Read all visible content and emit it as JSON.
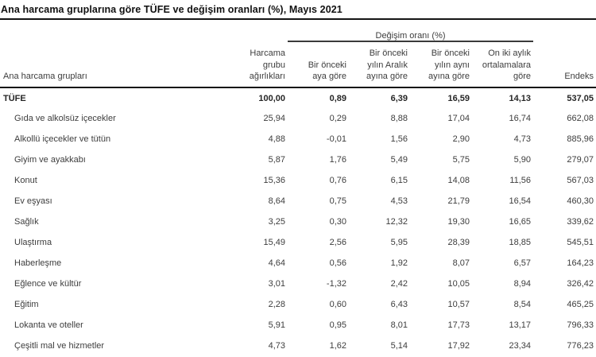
{
  "title": "Ana harcama gruplarına göre TÜFE ve değişim oranları (%), Mayıs 2021",
  "table": {
    "group_header": "Değişim oranı (%)",
    "columns": [
      "Ana harcama grupları",
      "Harcama grubu ağırlıkları",
      "Bir önceki aya göre",
      "Bir önceki yılın Aralık ayına göre",
      "Bir önceki yılın aynı ayına göre",
      "On iki aylık ortalamalara göre",
      "Endeks"
    ],
    "columns_multiline": [
      [
        "Ana harcama grupları"
      ],
      [
        "Harcama",
        "grubu",
        "ağırlıkları"
      ],
      [
        "Bir önceki",
        "aya göre"
      ],
      [
        "Bir önceki",
        "yılın Aralık",
        "ayına göre"
      ],
      [
        "Bir önceki",
        "yılın aynı",
        "ayına göre"
      ],
      [
        "On iki aylık",
        "ortalamalara",
        "göre"
      ],
      [
        "Endeks"
      ]
    ],
    "rows": [
      {
        "label": "TÜFE",
        "bold": true,
        "indent": false,
        "values": [
          "100,00",
          "0,89",
          "6,39",
          "16,59",
          "14,13",
          "537,05"
        ]
      },
      {
        "label": "Gıda ve alkolsüz içecekler",
        "bold": false,
        "indent": true,
        "values": [
          "25,94",
          "0,29",
          "8,88",
          "17,04",
          "16,74",
          "662,08"
        ]
      },
      {
        "label": "Alkollü içecekler ve tütün",
        "bold": false,
        "indent": true,
        "values": [
          "4,88",
          "-0,01",
          "1,56",
          "2,90",
          "4,73",
          "885,96"
        ]
      },
      {
        "label": "Giyim ve ayakkabı",
        "bold": false,
        "indent": true,
        "values": [
          "5,87",
          "1,76",
          "5,49",
          "5,75",
          "5,90",
          "279,07"
        ]
      },
      {
        "label": "Konut",
        "bold": false,
        "indent": true,
        "values": [
          "15,36",
          "0,76",
          "6,15",
          "14,08",
          "11,56",
          "567,03"
        ]
      },
      {
        "label": "Ev eşyası",
        "bold": false,
        "indent": true,
        "values": [
          "8,64",
          "0,75",
          "4,53",
          "21,79",
          "16,54",
          "460,30"
        ]
      },
      {
        "label": "Sağlık",
        "bold": false,
        "indent": true,
        "values": [
          "3,25",
          "0,30",
          "12,32",
          "19,30",
          "16,65",
          "339,62"
        ]
      },
      {
        "label": "Ulaştırma",
        "bold": false,
        "indent": true,
        "values": [
          "15,49",
          "2,56",
          "5,95",
          "28,39",
          "18,85",
          "545,51"
        ]
      },
      {
        "label": "Haberleşme",
        "bold": false,
        "indent": true,
        "values": [
          "4,64",
          "0,56",
          "1,92",
          "8,07",
          "6,57",
          "164,23"
        ]
      },
      {
        "label": "Eğlence ve kültür",
        "bold": false,
        "indent": true,
        "values": [
          "3,01",
          "-1,32",
          "2,42",
          "10,05",
          "8,94",
          "326,42"
        ]
      },
      {
        "label": "Eğitim",
        "bold": false,
        "indent": true,
        "values": [
          "2,28",
          "0,60",
          "6,43",
          "10,57",
          "8,54",
          "465,25"
        ]
      },
      {
        "label": "Lokanta ve oteller",
        "bold": false,
        "indent": true,
        "values": [
          "5,91",
          "0,95",
          "8,01",
          "17,73",
          "13,17",
          "796,33"
        ]
      },
      {
        "label": "Çeşitli mal ve hizmetler",
        "bold": false,
        "indent": true,
        "values": [
          "4,73",
          "1,62",
          "5,14",
          "17,92",
          "23,34",
          "776,23"
        ]
      }
    ]
  },
  "colors": {
    "background": "#ffffff",
    "text": "#3d3d3d",
    "title_text": "#111111",
    "rule": "#151515"
  },
  "chart_data": {
    "type": "table",
    "title": "Ana harcama gruplarına göre TÜFE ve değişim oranları (%), Mayıs 2021",
    "group_header": "Değişim oranı (%)",
    "columns": [
      "Ana harcama grupları",
      "Harcama grubu ağırlıkları",
      "Bir önceki aya göre",
      "Bir önceki yılın Aralık ayına göre",
      "Bir önceki yılın aynı ayına göre",
      "On iki aylık ortalamalara göre",
      "Endeks"
    ],
    "rows": [
      [
        "TÜFE",
        100.0,
        0.89,
        6.39,
        16.59,
        14.13,
        537.05
      ],
      [
        "Gıda ve alkolsüz içecekler",
        25.94,
        0.29,
        8.88,
        17.04,
        16.74,
        662.08
      ],
      [
        "Alkollü içecekler ve tütün",
        4.88,
        -0.01,
        1.56,
        2.9,
        4.73,
        885.96
      ],
      [
        "Giyim ve ayakkabı",
        5.87,
        1.76,
        5.49,
        5.75,
        5.9,
        279.07
      ],
      [
        "Konut",
        15.36,
        0.76,
        6.15,
        14.08,
        11.56,
        567.03
      ],
      [
        "Ev eşyası",
        8.64,
        0.75,
        4.53,
        21.79,
        16.54,
        460.3
      ],
      [
        "Sağlık",
        3.25,
        0.3,
        12.32,
        19.3,
        16.65,
        339.62
      ],
      [
        "Ulaştırma",
        15.49,
        2.56,
        5.95,
        28.39,
        18.85,
        545.51
      ],
      [
        "Haberleşme",
        4.64,
        0.56,
        1.92,
        8.07,
        6.57,
        164.23
      ],
      [
        "Eğlence ve kültür",
        3.01,
        -1.32,
        2.42,
        10.05,
        8.94,
        326.42
      ],
      [
        "Eğitim",
        2.28,
        0.6,
        6.43,
        10.57,
        8.54,
        465.25
      ],
      [
        "Lokanta ve oteller",
        5.91,
        0.95,
        8.01,
        17.73,
        13.17,
        796.33
      ],
      [
        "Çeşitli mal ve hizmetler",
        4.73,
        1.62,
        5.14,
        17.92,
        23.34,
        776.23
      ]
    ]
  }
}
